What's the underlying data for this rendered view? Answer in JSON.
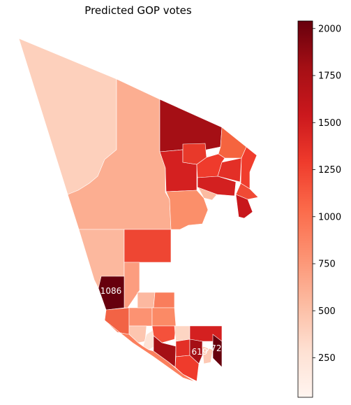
{
  "title": "Predicted GOP votes",
  "colorbar": {
    "min": 40,
    "max": 2040,
    "ticks": [
      {
        "value": 250,
        "label": "250"
      },
      {
        "value": 500,
        "label": "500"
      },
      {
        "value": 750,
        "label": "750"
      },
      {
        "value": 1000,
        "label": "1000"
      },
      {
        "value": 1250,
        "label": "1250"
      },
      {
        "value": 1500,
        "label": "1500"
      },
      {
        "value": 1750,
        "label": "1750"
      },
      {
        "value": 2000,
        "label": "2000"
      }
    ],
    "colormap": "Reds"
  },
  "map_labels": [
    "1086",
    "619",
    "772"
  ]
}
